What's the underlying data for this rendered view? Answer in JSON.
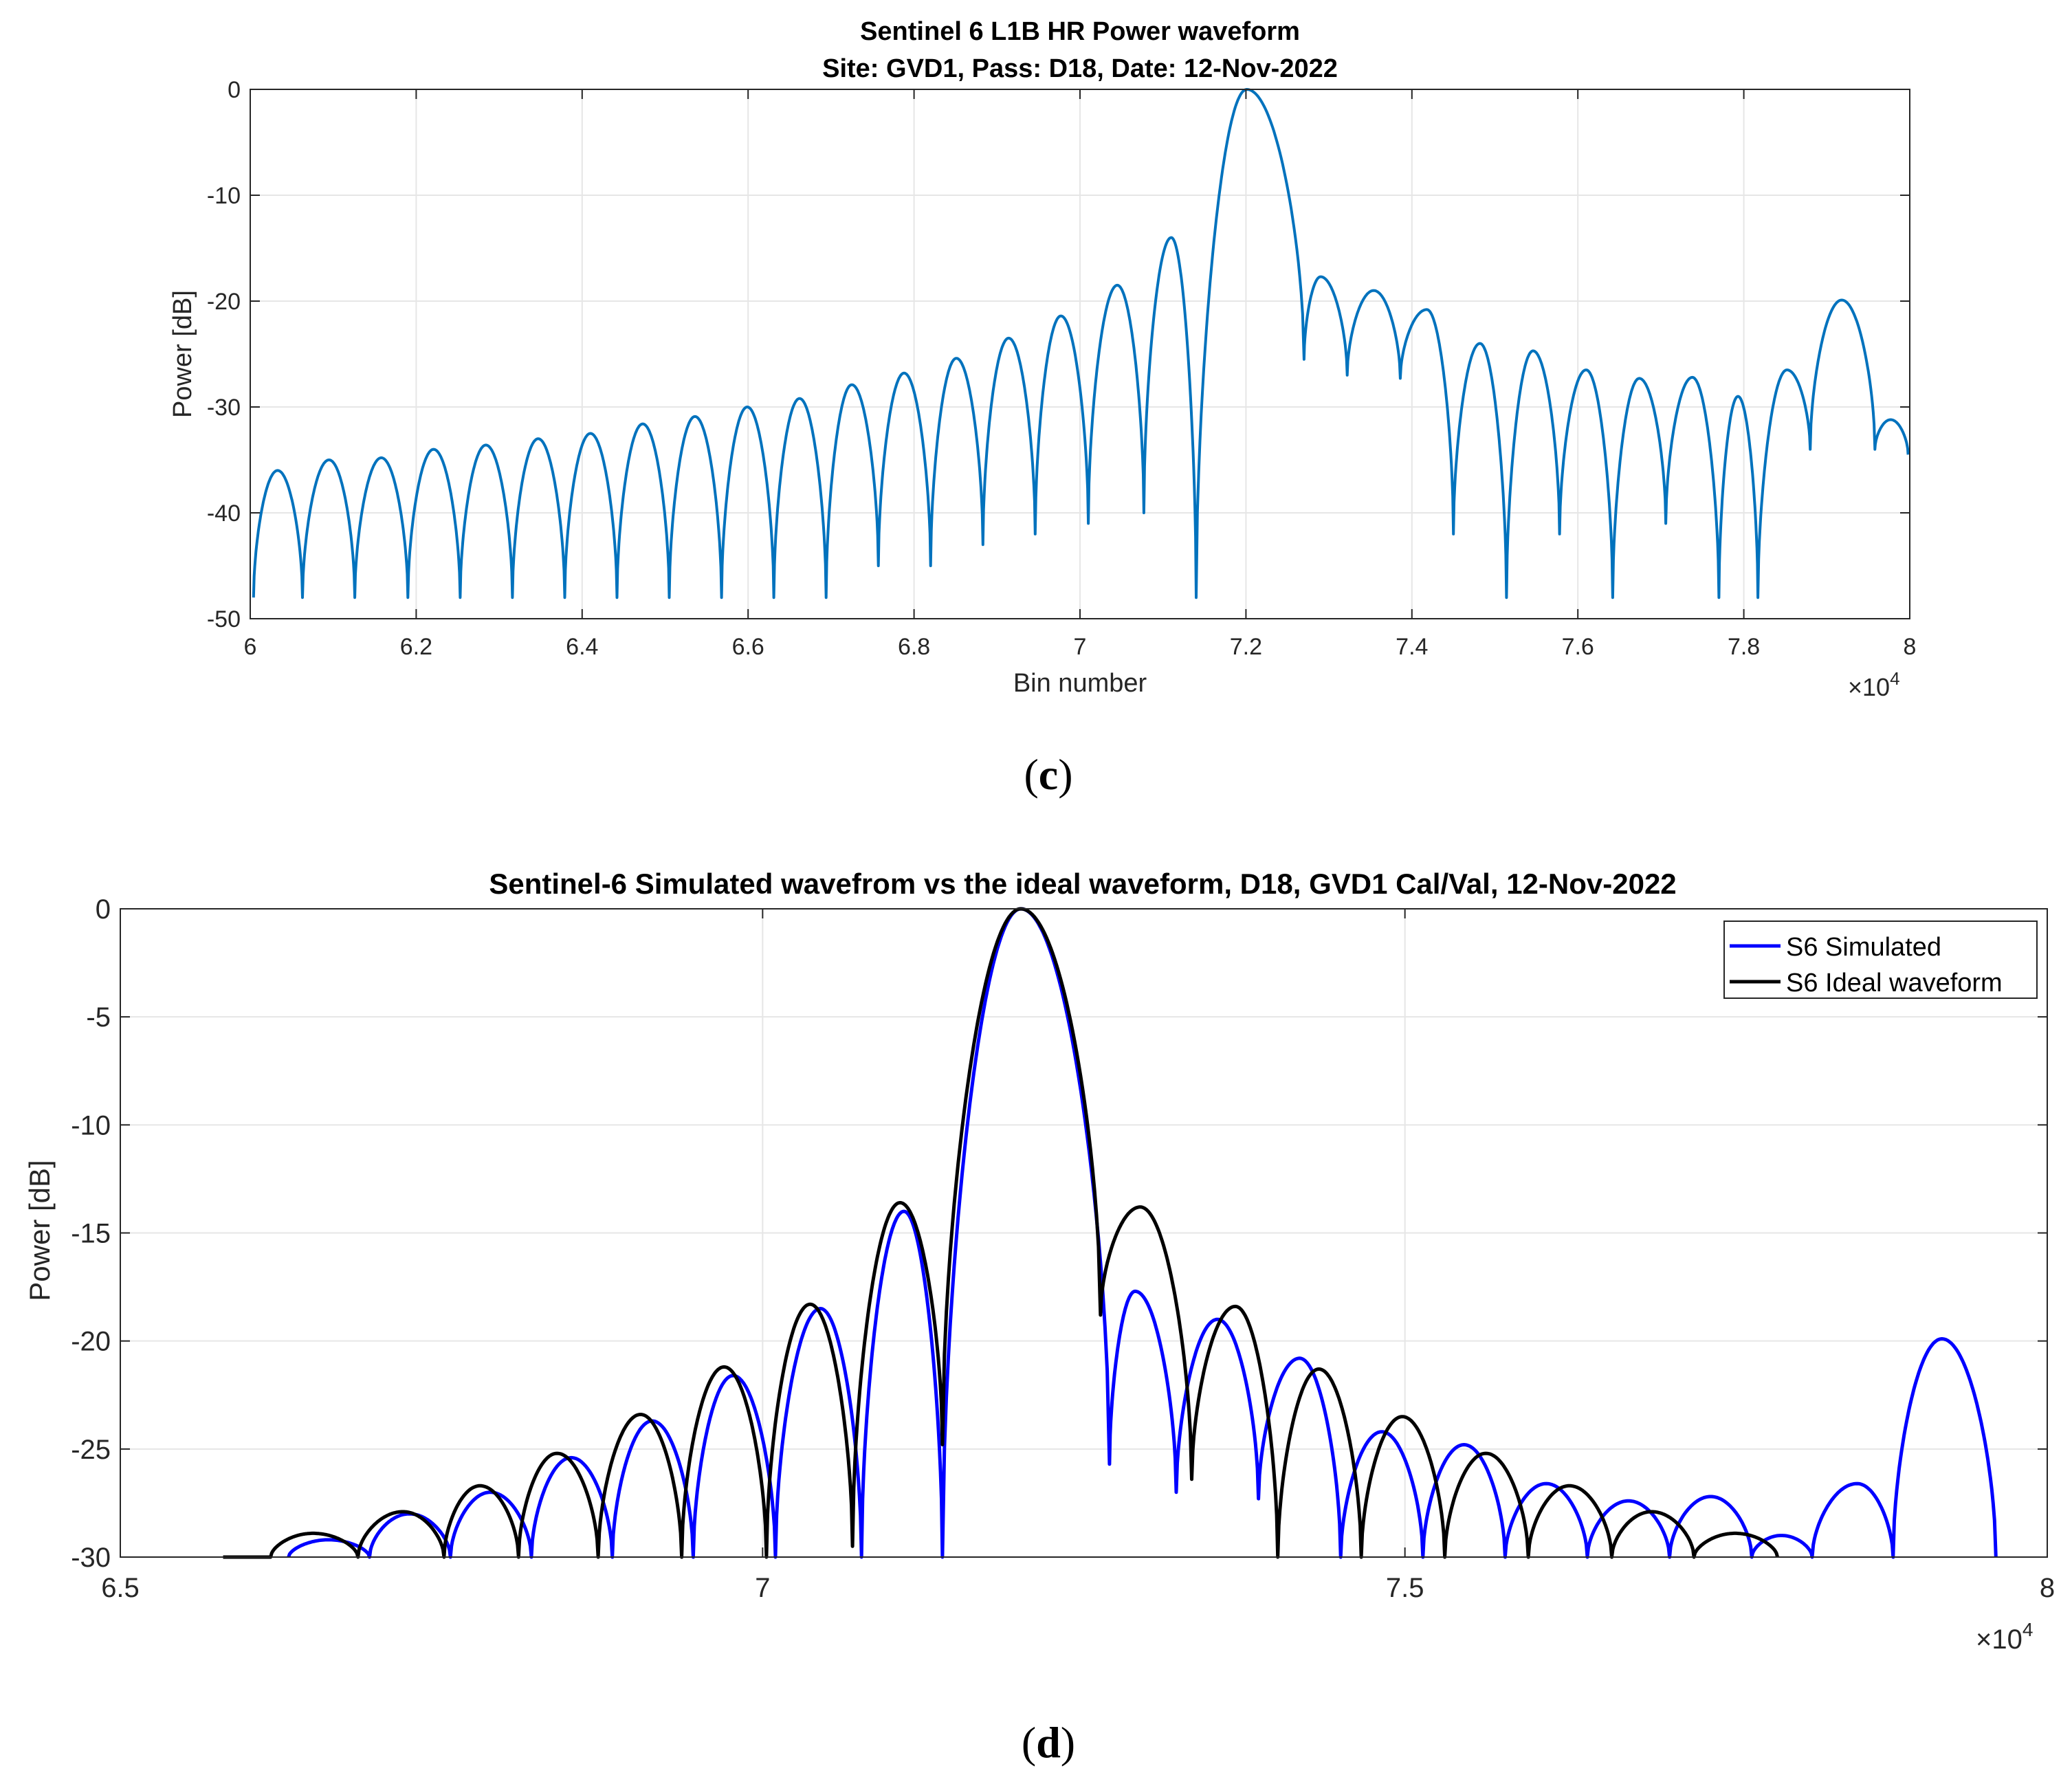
{
  "figure": {
    "panels": [
      {
        "letter": "c"
      },
      {
        "letter": "d"
      }
    ]
  },
  "chart_data": [
    {
      "type": "line",
      "title": "Sentinel 6 L1B HR Power waveform",
      "subtitle": "Site: GVD1, Pass: D18, Date: 12-Nov-2022",
      "xlabel": "Bin number",
      "ylabel": "Power [dB]",
      "x_exponent_label": "×10",
      "x_exponent": "4",
      "xlim": [
        6.0,
        8.0
      ],
      "ylim": [
        -50,
        0
      ],
      "x_ticks": [
        6,
        6.2,
        6.4,
        6.6,
        6.8,
        7,
        7.2,
        7.4,
        7.6,
        7.8,
        8
      ],
      "x_tick_labels": [
        "6",
        "6.2",
        "6.4",
        "6.6",
        "6.8",
        "7",
        "7.2",
        "7.4",
        "7.6",
        "7.8",
        "8"
      ],
      "y_ticks": [
        0,
        -10,
        -20,
        -30,
        -40,
        -50
      ],
      "y_tick_labels": [
        "0",
        "-10",
        "-20",
        "-30",
        "-40",
        "-50"
      ],
      "grid": true,
      "color": "#0072BD",
      "x_unit_note": "bin number in units of 10^4",
      "series": [
        {
          "name": "L1B HR power waveform",
          "lobe_peaks": [
            [
              6.033,
              -36
            ],
            [
              6.095,
              -35
            ],
            [
              6.158,
              -34.8
            ],
            [
              6.221,
              -34
            ],
            [
              6.284,
              -33.6
            ],
            [
              6.347,
              -33
            ],
            [
              6.41,
              -32.5
            ],
            [
              6.473,
              -31.6
            ],
            [
              6.536,
              -30.9
            ],
            [
              6.599,
              -30
            ],
            [
              6.662,
              -29.2
            ],
            [
              6.725,
              -27.9
            ],
            [
              6.788,
              -26.8
            ],
            [
              6.851,
              -25.4
            ],
            [
              6.914,
              -23.5
            ],
            [
              6.977,
              -21.4
            ],
            [
              7.045,
              -18.5
            ],
            [
              7.11,
              -14
            ],
            [
              7.201,
              0
            ],
            [
              7.29,
              -17.7
            ],
            [
              7.354,
              -19
            ],
            [
              7.418,
              -20.8
            ],
            [
              7.482,
              -24
            ],
            [
              7.546,
              -24.7
            ],
            [
              7.61,
              -26.5
            ],
            [
              7.674,
              -27.3
            ],
            [
              7.738,
              -27.2
            ],
            [
              7.793,
              -29
            ],
            [
              7.852,
              -26.5
            ],
            [
              7.918,
              -19.9
            ],
            [
              7.977,
              -31.2
            ]
          ],
          "nulls": [
            [
              6.004,
              -48
            ],
            [
              6.063,
              -48
            ],
            [
              6.126,
              -48
            ],
            [
              6.19,
              -48
            ],
            [
              6.253,
              -48
            ],
            [
              6.316,
              -48
            ],
            [
              6.379,
              -48
            ],
            [
              6.442,
              -48
            ],
            [
              6.505,
              -48
            ],
            [
              6.568,
              -48
            ],
            [
              6.631,
              -48
            ],
            [
              6.694,
              -48
            ],
            [
              6.757,
              -45
            ],
            [
              6.82,
              -45
            ],
            [
              6.883,
              -43
            ],
            [
              6.946,
              -42
            ],
            [
              7.01,
              -41
            ],
            [
              7.077,
              -40
            ],
            [
              7.14,
              -48
            ],
            [
              7.27,
              -25.5
            ],
            [
              7.322,
              -27
            ],
            [
              7.386,
              -27.3
            ],
            [
              7.45,
              -42
            ],
            [
              7.514,
              -48
            ],
            [
              7.578,
              -42
            ],
            [
              7.642,
              -48
            ],
            [
              7.706,
              -41
            ],
            [
              7.77,
              -48
            ],
            [
              7.817,
              -48
            ],
            [
              7.88,
              -34
            ],
            [
              7.958,
              -34
            ],
            [
              7.998,
              -34.5
            ]
          ]
        }
      ]
    },
    {
      "type": "line",
      "title": "Sentinel-6 Simulated wavefrom vs the ideal waveform, D18, GVD1 Cal/Val, 12-Nov-2022",
      "xlabel": "",
      "ylabel": "Power [dB]",
      "x_exponent_label": "×10",
      "x_exponent": "4",
      "xlim": [
        6.5,
        8.0
      ],
      "ylim": [
        -30,
        0
      ],
      "x_ticks": [
        6.5,
        7,
        7.5,
        8
      ],
      "x_tick_labels": [
        "6.5",
        "7",
        "7.5",
        "8"
      ],
      "y_ticks": [
        0,
        -5,
        -10,
        -15,
        -20,
        -25,
        -30
      ],
      "y_tick_labels": [
        "0",
        "-5",
        "-10",
        "-15",
        "-20",
        "-25",
        "-30"
      ],
      "grid": true,
      "legend": {
        "position": "top-right"
      },
      "series": [
        {
          "name": "S6 Simulated",
          "color": "#0000FF",
          "lobe_peaks": [
            [
              6.662,
              -29.2
            ],
            [
              6.725,
              -28
            ],
            [
              6.788,
              -27
            ],
            [
              6.851,
              -25.4
            ],
            [
              6.914,
              -23.7
            ],
            [
              6.977,
              -21.6
            ],
            [
              7.045,
              -18.5
            ],
            [
              7.11,
              -14
            ],
            [
              7.201,
              0
            ],
            [
              7.29,
              -17.7
            ],
            [
              7.354,
              -19
            ],
            [
              7.418,
              -20.8
            ],
            [
              7.482,
              -24.2
            ],
            [
              7.546,
              -24.8
            ],
            [
              7.61,
              -26.6
            ],
            [
              7.674,
              -27.4
            ],
            [
              7.738,
              -27.2
            ],
            [
              7.793,
              -29
            ],
            [
              7.852,
              -26.6
            ],
            [
              7.918,
              -19.9
            ]
          ],
          "nulls": [
            [
              6.631,
              -30
            ],
            [
              6.694,
              -30
            ],
            [
              6.757,
              -30
            ],
            [
              6.82,
              -30
            ],
            [
              6.883,
              -30
            ],
            [
              6.946,
              -30
            ],
            [
              7.01,
              -30
            ],
            [
              7.077,
              -30
            ],
            [
              7.14,
              -30
            ],
            [
              7.27,
              -25.7
            ],
            [
              7.322,
              -27
            ],
            [
              7.386,
              -27.3
            ],
            [
              7.45,
              -30
            ],
            [
              7.514,
              -30
            ],
            [
              7.578,
              -30
            ],
            [
              7.642,
              -30
            ],
            [
              7.706,
              -30
            ],
            [
              7.77,
              -30
            ],
            [
              7.817,
              -30
            ],
            [
              7.88,
              -30
            ],
            [
              7.96,
              -30
            ]
          ]
        },
        {
          "name": "S6 Ideal waveform",
          "color": "#000000",
          "lobe_peaks": [
            [
              6.58,
              -30
            ],
            [
              6.65,
              -28.9
            ],
            [
              6.72,
              -27.9
            ],
            [
              6.78,
              -26.7
            ],
            [
              6.84,
              -25.2
            ],
            [
              6.905,
              -23.4
            ],
            [
              6.97,
              -21.2
            ],
            [
              7.037,
              -18.3
            ],
            [
              7.107,
              -13.6
            ],
            [
              7.201,
              0
            ],
            [
              7.294,
              -13.8
            ],
            [
              7.368,
              -18.4
            ],
            [
              7.433,
              -21.3
            ],
            [
              7.498,
              -23.5
            ],
            [
              7.563,
              -25.2
            ],
            [
              7.628,
              -26.7
            ],
            [
              7.692,
              -27.9
            ],
            [
              7.757,
              -28.9
            ]
          ],
          "nulls": [
            [
              6.58,
              -30
            ],
            [
              6.617,
              -30
            ],
            [
              6.685,
              -30
            ],
            [
              6.752,
              -30
            ],
            [
              6.81,
              -30
            ],
            [
              6.872,
              -30
            ],
            [
              6.937,
              -30
            ],
            [
              7.003,
              -30
            ],
            [
              7.07,
              -29.5
            ],
            [
              7.14,
              -24.8
            ],
            [
              7.263,
              -18.8
            ],
            [
              7.334,
              -26.4
            ],
            [
              7.401,
              -30
            ],
            [
              7.466,
              -30
            ],
            [
              7.531,
              -30
            ],
            [
              7.596,
              -30
            ],
            [
              7.661,
              -30
            ],
            [
              7.725,
              -30
            ],
            [
              7.79,
              -30
            ]
          ]
        }
      ]
    }
  ]
}
